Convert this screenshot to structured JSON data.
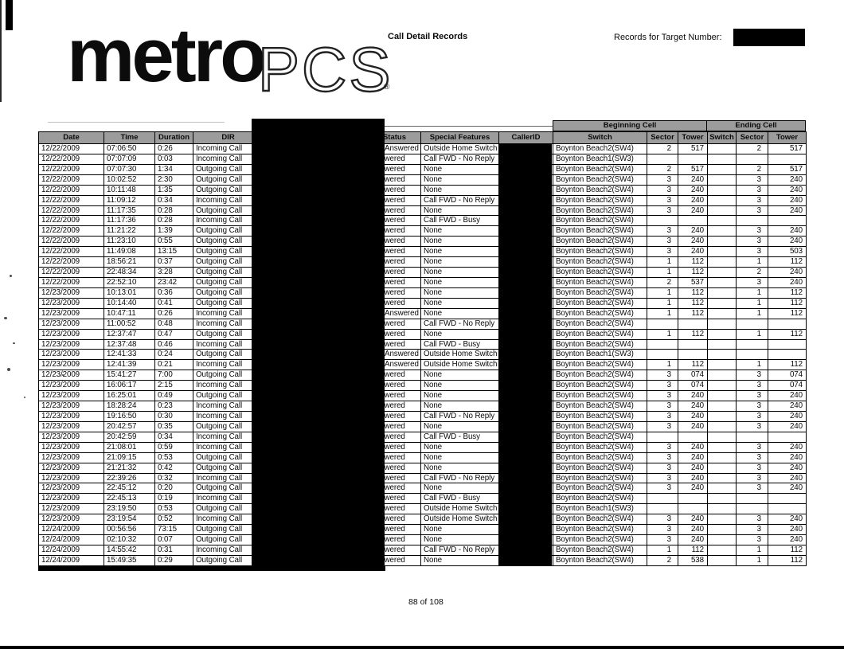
{
  "page": {
    "logo": {
      "metro": "metro",
      "pcs": "PCS",
      "registered": "®"
    },
    "doc_title": "Call Detail Records",
    "target_label": "Records for Target Number:",
    "page_number": "88 of 108"
  },
  "colors": {
    "header_bg": "#9c9c9c",
    "redaction": "#000000"
  },
  "table": {
    "group_headers": {
      "beginning": "Beginning Cell",
      "ending": "Ending Cell"
    },
    "columns": [
      "Date",
      "Time",
      "Duration",
      "DIR",
      "",
      "Status",
      "Special Features",
      "CallerID",
      "Switch",
      "Sector",
      "Tower",
      "Switch",
      "Sector",
      "Tower"
    ],
    "rows": [
      {
        "date": "12/22/2009",
        "time": "07:06:50",
        "duration": "0:26",
        "dir": "Incoming Call",
        "status": "Not Answered",
        "special": "Outside Home Switch",
        "beg_switch": "Boynton Beach2(SW4)",
        "beg_sector": "2",
        "beg_tower": "517",
        "end_switch": "",
        "end_sector": "2",
        "end_tower": "517"
      },
      {
        "date": "12/22/2009",
        "time": "07:07:09",
        "duration": "0:03",
        "dir": "Incoming Call",
        "status": "Answered",
        "special": "Call FWD - No Reply",
        "beg_switch": "Boynton Beach1(SW3)",
        "beg_sector": "",
        "beg_tower": "",
        "end_switch": "",
        "end_sector": "",
        "end_tower": ""
      },
      {
        "date": "12/22/2009",
        "time": "07:07:30",
        "duration": "1:34",
        "dir": "Outgoing Call",
        "status": "Answered",
        "special": "None",
        "beg_switch": "Boynton Beach2(SW4)",
        "beg_sector": "2",
        "beg_tower": "517",
        "end_switch": "",
        "end_sector": "2",
        "end_tower": "517"
      },
      {
        "date": "12/22/2009",
        "time": "10:02:52",
        "duration": "2:30",
        "dir": "Outgoing Call",
        "status": "Answered",
        "special": "None",
        "beg_switch": "Boynton Beach2(SW4)",
        "beg_sector": "3",
        "beg_tower": "240",
        "end_switch": "",
        "end_sector": "3",
        "end_tower": "240"
      },
      {
        "date": "12/22/2009",
        "time": "10:11:48",
        "duration": "1:35",
        "dir": "Outgoing Call",
        "status": "Answered",
        "special": "None",
        "beg_switch": "Boynton Beach2(SW4)",
        "beg_sector": "3",
        "beg_tower": "240",
        "end_switch": "",
        "end_sector": "3",
        "end_tower": "240"
      },
      {
        "date": "12/22/2009",
        "time": "11:09:12",
        "duration": "0:34",
        "dir": "Incoming Call",
        "status": "Answered",
        "special": "Call FWD - No Reply",
        "beg_switch": "Boynton Beach2(SW4)",
        "beg_sector": "3",
        "beg_tower": "240",
        "end_switch": "",
        "end_sector": "3",
        "end_tower": "240"
      },
      {
        "date": "12/22/2009",
        "time": "11:17:35",
        "duration": "0:28",
        "dir": "Outgoing Call",
        "status": "Answered",
        "special": "None",
        "beg_switch": "Boynton Beach2(SW4)",
        "beg_sector": "3",
        "beg_tower": "240",
        "end_switch": "",
        "end_sector": "3",
        "end_tower": "240"
      },
      {
        "date": "12/22/2009",
        "time": "11:17:36",
        "duration": "0:28",
        "dir": "Incoming Call",
        "status": "Answered",
        "special": "Call FWD - Busy",
        "beg_switch": "Boynton Beach2(SW4)",
        "beg_sector": "",
        "beg_tower": "",
        "end_switch": "",
        "end_sector": "",
        "end_tower": ""
      },
      {
        "date": "12/22/2009",
        "time": "11:21:22",
        "duration": "1:39",
        "dir": "Outgoing Call",
        "status": "Answered",
        "special": "None",
        "beg_switch": "Boynton Beach2(SW4)",
        "beg_sector": "3",
        "beg_tower": "240",
        "end_switch": "",
        "end_sector": "3",
        "end_tower": "240"
      },
      {
        "date": "12/22/2009",
        "time": "11:23:10",
        "duration": "0:55",
        "dir": "Outgoing Call",
        "status": "Answered",
        "special": "None",
        "beg_switch": "Boynton Beach2(SW4)",
        "beg_sector": "3",
        "beg_tower": "240",
        "end_switch": "",
        "end_sector": "3",
        "end_tower": "240"
      },
      {
        "date": "12/22/2009",
        "time": "11:49:08",
        "duration": "13:15",
        "dir": "Outgoing Call",
        "status": "Answered",
        "special": "None",
        "beg_switch": "Boynton Beach2(SW4)",
        "beg_sector": "3",
        "beg_tower": "240",
        "end_switch": "",
        "end_sector": "3",
        "end_tower": "503"
      },
      {
        "date": "12/22/2009",
        "time": "18:56:21",
        "duration": "0:37",
        "dir": "Outgoing Call",
        "status": "Answered",
        "special": "None",
        "beg_switch": "Boynton Beach2(SW4)",
        "beg_sector": "1",
        "beg_tower": "112",
        "end_switch": "",
        "end_sector": "1",
        "end_tower": "112"
      },
      {
        "date": "12/22/2009",
        "time": "22:48:34",
        "duration": "3:28",
        "dir": "Outgoing Call",
        "status": "Answered",
        "special": "None",
        "beg_switch": "Boynton Beach2(SW4)",
        "beg_sector": "1",
        "beg_tower": "112",
        "end_switch": "",
        "end_sector": "2",
        "end_tower": "240"
      },
      {
        "date": "12/22/2009",
        "time": "22:52:10",
        "duration": "23:42",
        "dir": "Outgoing Call",
        "status": "Answered",
        "special": "None",
        "beg_switch": "Boynton Beach2(SW4)",
        "beg_sector": "2",
        "beg_tower": "537",
        "end_switch": "",
        "end_sector": "3",
        "end_tower": "240"
      },
      {
        "date": "12/23/2009",
        "time": "10:13:01",
        "duration": "0:36",
        "dir": "Outgoing Call",
        "status": "Answered",
        "special": "None",
        "beg_switch": "Boynton Beach2(SW4)",
        "beg_sector": "1",
        "beg_tower": "112",
        "end_switch": "",
        "end_sector": "1",
        "end_tower": "112"
      },
      {
        "date": "12/23/2009",
        "time": "10:14:40",
        "duration": "0:41",
        "dir": "Outgoing Call",
        "status": "Answered",
        "special": "None",
        "beg_switch": "Boynton Beach2(SW4)",
        "beg_sector": "1",
        "beg_tower": "112",
        "end_switch": "",
        "end_sector": "1",
        "end_tower": "112"
      },
      {
        "date": "12/23/2009",
        "time": "10:47:11",
        "duration": "0:26",
        "dir": "Incoming Call",
        "status": "Not Answered",
        "special": "None",
        "beg_switch": "Boynton Beach2(SW4)",
        "beg_sector": "1",
        "beg_tower": "112",
        "end_switch": "",
        "end_sector": "1",
        "end_tower": "112"
      },
      {
        "date": "12/23/2009",
        "time": "11:00:52",
        "duration": "0:48",
        "dir": "Incoming Call",
        "status": "Answered",
        "special": "Call FWD - No Reply",
        "beg_switch": "Boynton Beach2(SW4)",
        "beg_sector": "",
        "beg_tower": "",
        "end_switch": "",
        "end_sector": "",
        "end_tower": ""
      },
      {
        "date": "12/23/2009",
        "time": "12:37:47",
        "duration": "0:47",
        "dir": "Outgoing Call",
        "status": "Answered",
        "special": "None",
        "beg_switch": "Boynton Beach2(SW4)",
        "beg_sector": "1",
        "beg_tower": "112",
        "end_switch": "",
        "end_sector": "1",
        "end_tower": "112"
      },
      {
        "date": "12/23/2009",
        "time": "12:37:48",
        "duration": "0:46",
        "dir": "Incoming Call",
        "status": "Answered",
        "special": "Call FWD - Busy",
        "beg_switch": "Boynton Beach2(SW4)",
        "beg_sector": "",
        "beg_tower": "",
        "end_switch": "",
        "end_sector": "",
        "end_tower": ""
      },
      {
        "date": "12/23/2009",
        "time": "12:41:33",
        "duration": "0:24",
        "dir": "Outgoing Call",
        "status": "Not Answered",
        "special": "Outside Home Switch",
        "beg_switch": "Boynton Beach1(SW3)",
        "beg_sector": "",
        "beg_tower": "",
        "end_switch": "",
        "end_sector": "",
        "end_tower": ""
      },
      {
        "date": "12/23/2009",
        "time": "12:41:39",
        "duration": "0:21",
        "dir": "Incoming Call",
        "status": "Not Answered",
        "special": "Outside Home Switch",
        "beg_switch": "Boynton Beach2(SW4)",
        "beg_sector": "1",
        "beg_tower": "112",
        "end_switch": "",
        "end_sector": "1",
        "end_tower": "112"
      },
      {
        "date": "12/23/2009",
        "time": "15:41:27",
        "duration": "7:00",
        "dir": "Outgoing Call",
        "status": "Answered",
        "special": "None",
        "beg_switch": "Boynton Beach2(SW4)",
        "beg_sector": "3",
        "beg_tower": "074",
        "end_switch": "",
        "end_sector": "3",
        "end_tower": "074"
      },
      {
        "date": "12/23/2009",
        "time": "16:06:17",
        "duration": "2:15",
        "dir": "Incoming Call",
        "status": "Answered",
        "special": "None",
        "beg_switch": "Boynton Beach2(SW4)",
        "beg_sector": "3",
        "beg_tower": "074",
        "end_switch": "",
        "end_sector": "3",
        "end_tower": "074"
      },
      {
        "date": "12/23/2009",
        "time": "16:25:01",
        "duration": "0:49",
        "dir": "Outgoing Call",
        "status": "Answered",
        "special": "None",
        "beg_switch": "Boynton Beach2(SW4)",
        "beg_sector": "3",
        "beg_tower": "240",
        "end_switch": "",
        "end_sector": "3",
        "end_tower": "240"
      },
      {
        "date": "12/23/2009",
        "time": "18:28:24",
        "duration": "0:23",
        "dir": "Incoming Call",
        "status": "Answered",
        "special": "None",
        "beg_switch": "Boynton Beach2(SW4)",
        "beg_sector": "3",
        "beg_tower": "240",
        "end_switch": "",
        "end_sector": "3",
        "end_tower": "240"
      },
      {
        "date": "12/23/2009",
        "time": "19:16:50",
        "duration": "0:30",
        "dir": "Incoming Call",
        "status": "Answered",
        "special": "Call FWD - No Reply",
        "beg_switch": "Boynton Beach2(SW4)",
        "beg_sector": "3",
        "beg_tower": "240",
        "end_switch": "",
        "end_sector": "3",
        "end_tower": "240"
      },
      {
        "date": "12/23/2009",
        "time": "20:42:57",
        "duration": "0:35",
        "dir": "Outgoing Call",
        "status": "Answered",
        "special": "None",
        "beg_switch": "Boynton Beach2(SW4)",
        "beg_sector": "3",
        "beg_tower": "240",
        "end_switch": "",
        "end_sector": "3",
        "end_tower": "240"
      },
      {
        "date": "12/23/2009",
        "time": "20:42:59",
        "duration": "0:34",
        "dir": "Incoming Call",
        "status": "Answered",
        "special": "Call FWD - Busy",
        "beg_switch": "Boynton Beach2(SW4)",
        "beg_sector": "",
        "beg_tower": "",
        "end_switch": "",
        "end_sector": "",
        "end_tower": ""
      },
      {
        "date": "12/23/2009",
        "time": "21:08:01",
        "duration": "0:59",
        "dir": "Incoming Call",
        "status": "Answered",
        "special": "None",
        "beg_switch": "Boynton Beach2(SW4)",
        "beg_sector": "3",
        "beg_tower": "240",
        "end_switch": "",
        "end_sector": "3",
        "end_tower": "240"
      },
      {
        "date": "12/23/2009",
        "time": "21:09:15",
        "duration": "0:53",
        "dir": "Outgoing Call",
        "status": "Answered",
        "special": "None",
        "beg_switch": "Boynton Beach2(SW4)",
        "beg_sector": "3",
        "beg_tower": "240",
        "end_switch": "",
        "end_sector": "3",
        "end_tower": "240"
      },
      {
        "date": "12/23/2009",
        "time": "21:21:32",
        "duration": "0:42",
        "dir": "Outgoing Call",
        "status": "Answered",
        "special": "None",
        "beg_switch": "Boynton Beach2(SW4)",
        "beg_sector": "3",
        "beg_tower": "240",
        "end_switch": "",
        "end_sector": "3",
        "end_tower": "240"
      },
      {
        "date": "12/23/2009",
        "time": "22:39:26",
        "duration": "0:32",
        "dir": "Incoming Call",
        "status": "Answered",
        "special": "Call FWD - No Reply",
        "beg_switch": "Boynton Beach2(SW4)",
        "beg_sector": "3",
        "beg_tower": "240",
        "end_switch": "",
        "end_sector": "3",
        "end_tower": "240"
      },
      {
        "date": "12/23/2009",
        "time": "22:45:12",
        "duration": "0:20",
        "dir": "Outgoing Call",
        "status": "Answered",
        "special": "None",
        "beg_switch": "Boynton Beach2(SW4)",
        "beg_sector": "3",
        "beg_tower": "240",
        "end_switch": "",
        "end_sector": "3",
        "end_tower": "240"
      },
      {
        "date": "12/23/2009",
        "time": "22:45:13",
        "duration": "0:19",
        "dir": "Incoming Call",
        "status": "Answered",
        "special": "Call FWD - Busy",
        "beg_switch": "Boynton Beach2(SW4)",
        "beg_sector": "",
        "beg_tower": "",
        "end_switch": "",
        "end_sector": "",
        "end_tower": ""
      },
      {
        "date": "12/23/2009",
        "time": "23:19:50",
        "duration": "0:53",
        "dir": "Outgoing Call",
        "status": "Answered",
        "special": "Outside Home Switch",
        "beg_switch": "Boynton Beach1(SW3)",
        "beg_sector": "",
        "beg_tower": "",
        "end_switch": "",
        "end_sector": "",
        "end_tower": ""
      },
      {
        "date": "12/23/2009",
        "time": "23:19:54",
        "duration": "0:52",
        "dir": "Incoming Call",
        "status": "Answered",
        "special": "Outside Home Switch",
        "beg_switch": "Boynton Beach2(SW4)",
        "beg_sector": "3",
        "beg_tower": "240",
        "end_switch": "",
        "end_sector": "3",
        "end_tower": "240"
      },
      {
        "date": "12/24/2009",
        "time": "00:56:56",
        "duration": "73:15",
        "dir": "Outgoing Call",
        "status": "Answered",
        "special": "None",
        "beg_switch": "Boynton Beach2(SW4)",
        "beg_sector": "3",
        "beg_tower": "240",
        "end_switch": "",
        "end_sector": "3",
        "end_tower": "240"
      },
      {
        "date": "12/24/2009",
        "time": "02:10:32",
        "duration": "0:07",
        "dir": "Outgoing Call",
        "status": "Answered",
        "special": "None",
        "beg_switch": "Boynton Beach2(SW4)",
        "beg_sector": "3",
        "beg_tower": "240",
        "end_switch": "",
        "end_sector": "3",
        "end_tower": "240"
      },
      {
        "date": "12/24/2009",
        "time": "14:55:42",
        "duration": "0:31",
        "dir": "Incoming Call",
        "status": "Answered",
        "special": "Call FWD - No Reply",
        "beg_switch": "Boynton Beach2(SW4)",
        "beg_sector": "1",
        "beg_tower": "112",
        "end_switch": "",
        "end_sector": "1",
        "end_tower": "112"
      },
      {
        "date": "12/24/2009",
        "time": "15:49:35",
        "duration": "0:29",
        "dir": "Outgoing Call",
        "status": "Answered",
        "special": "None",
        "beg_switch": "Boynton Beach2(SW4)",
        "beg_sector": "2",
        "beg_tower": "538",
        "end_switch": "",
        "end_sector": "1",
        "end_tower": "112"
      }
    ]
  }
}
